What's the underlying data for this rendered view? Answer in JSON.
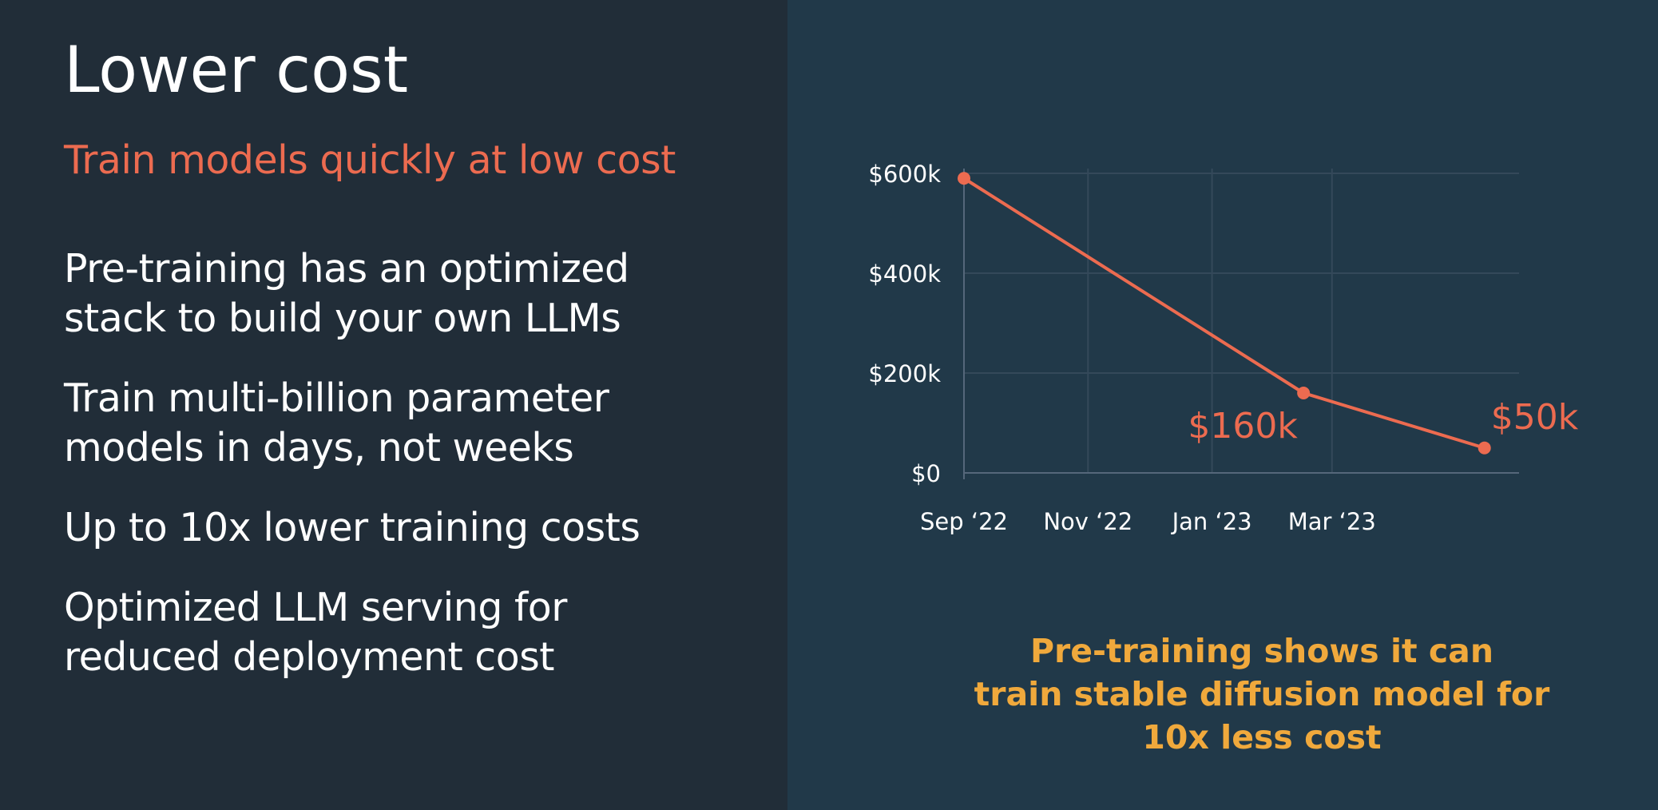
{
  "slide": {
    "title": "Lower cost",
    "subtitle": "Train models quickly at low cost",
    "bullets": [
      {
        "line1": "Pre-training has an optimized",
        "line2": "stack to build your own LLMs"
      },
      {
        "line1": "Train multi-billion parameter",
        "line2": "models in days, not weeks"
      },
      {
        "line1": "Up to 10x lower training costs",
        "line2": ""
      },
      {
        "line1": "Optimized LLM serving for",
        "line2": "reduced deployment cost"
      }
    ],
    "caption_lines": [
      "Pre-training shows it can",
      "train stable diffusion model for",
      "10x less cost"
    ]
  },
  "colors": {
    "left_bg": "#212d38",
    "right_bg": "#213949",
    "accent": "#ec6b50",
    "caption": "#f0a93c",
    "text": "#ffffff"
  },
  "chart_data": {
    "type": "line",
    "title": "",
    "xlabel": "",
    "ylabel": "",
    "x_ticks": [
      "Sep ‘22",
      "Nov ‘22",
      "Jan ‘23",
      "Mar ‘23"
    ],
    "y_ticks": [
      "$0",
      "$200k",
      "$400k",
      "$600k"
    ],
    "ylim": [
      0,
      600000
    ],
    "grid": true,
    "series": [
      {
        "points": [
          {
            "x": "2022-09-01",
            "y": 590000,
            "label": ""
          },
          {
            "x": "2023-02-15",
            "y": 160000,
            "label": "$160k"
          },
          {
            "x": "2023-05-15",
            "y": 50000,
            "label": "$50k"
          }
        ]
      }
    ]
  }
}
